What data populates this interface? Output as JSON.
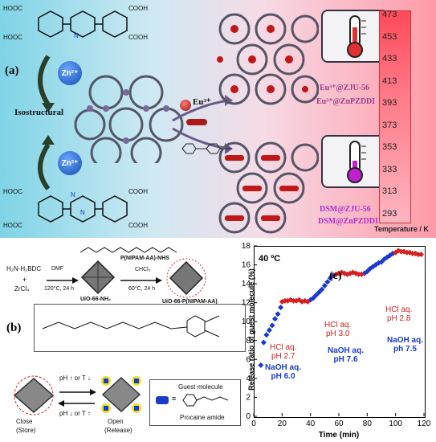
{
  "panel_a": {
    "label": "(a)",
    "zn_label": "Zn²⁺",
    "isostructural": "Isostructural",
    "eu_label": "Eu³⁺",
    "sensor_top_1": "Eu³⁺@ZJU-56",
    "sensor_top_2": "Eu³⁺@ZnPZDDI",
    "sensor_bottom_1": "DSM@ZJU-56",
    "sensor_bottom_2": "DSM@ZnPZDDI",
    "temp_axis_label": "Temperature / K",
    "temp_ticks": [
      "473",
      "453",
      "433",
      "413",
      "393",
      "373",
      "353",
      "333",
      "313",
      "293"
    ],
    "ligand_top_labels": [
      "HOOC",
      "COOH",
      "HOOC",
      "COOH",
      "N"
    ],
    "ligand_bottom_labels": [
      "HOOC",
      "COOH",
      "HOOC",
      "COOH",
      "N",
      "N"
    ]
  },
  "panel_b": {
    "label": "(b)",
    "reagent_1": "H₂N-H₂BDC",
    "plus": "+",
    "reagent_2": "ZrCl₄",
    "step1_top": "DMF",
    "step1_bottom": "120°C, 24 h",
    "mof1": "UiO-66-NH₂",
    "nhs_label": "P(NIPAM-AA)-NHS",
    "step2_top": "CHCl₃",
    "step2_bottom": "60°C, 24 h",
    "mof2": "UiO-66-P(NIPAM-AA)",
    "arrow_top": "pH ↑ or T ↓",
    "arrow_bottom": "pH ↓ or T ↑",
    "close_label": "Close",
    "close_sub": "(Store)",
    "open_label": "Open",
    "open_sub": "(Release)",
    "legend_guest": "Guest molecule",
    "legend_equiv": "≡",
    "legend_drug": "Procaine amide"
  },
  "panel_c": {
    "label": "(c)",
    "temperature": "40 ºC",
    "annotations": [
      {
        "l1": "HCl aq.",
        "l2": "pH 2.7",
        "color": "#d42020"
      },
      {
        "l1": "NaOH aq.",
        "l2": "pH 6.0",
        "color": "#1a3acc"
      },
      {
        "l1": "HCl aq.",
        "l2": "pH 3.0",
        "color": "#d42020"
      },
      {
        "l1": "NaOH aq.",
        "l2": "pH 7.6",
        "color": "#1a3acc"
      },
      {
        "l1": "HCl aq.",
        "l2": "pH 2.8",
        "color": "#d42020"
      },
      {
        "l1": "NaOH aq.",
        "l2": "ph 7.5",
        "color": "#1a3acc"
      }
    ]
  },
  "chart_data": {
    "type": "scatter",
    "title": "",
    "xlabel": "Time (min)",
    "ylabel": "Release ratio of guest molecule (%)",
    "xlim": [
      0,
      120
    ],
    "ylim": [
      0,
      18
    ],
    "xticks": [
      0,
      20,
      40,
      60,
      80,
      100,
      120
    ],
    "yticks": [
      0,
      2,
      4,
      6,
      8,
      10,
      12,
      14,
      16,
      18
    ],
    "series": [
      {
        "color": "#1a3acc",
        "x": [
          5,
          7,
          9,
          11,
          13,
          15,
          17,
          19,
          40,
          42,
          44,
          46,
          48,
          50,
          52,
          54,
          56,
          78,
          80,
          82,
          84,
          86,
          88,
          90,
          92,
          94,
          96,
          98
        ],
        "y": [
          5.4,
          7.8,
          8.6,
          9.1,
          9.6,
          10.3,
          10.8,
          11.5,
          12.3,
          12.5,
          12.8,
          13.1,
          13.4,
          13.8,
          14.2,
          14.6,
          14.9,
          15.1,
          15.3,
          15.6,
          15.8,
          16.0,
          16.2,
          16.3,
          16.6,
          16.8,
          17.0,
          17.2
        ]
      },
      {
        "color": "#d42020",
        "x": [
          20,
          22,
          24,
          26,
          28,
          30,
          32,
          34,
          36,
          38,
          58,
          60,
          62,
          64,
          66,
          68,
          70,
          72,
          74,
          76,
          100,
          102,
          104,
          106,
          108,
          110,
          112,
          114,
          116,
          118
        ],
        "y": [
          12.1,
          12.2,
          12.2,
          12.3,
          12.2,
          12.2,
          12.3,
          12.1,
          12.2,
          12.1,
          15.0,
          15.1,
          15.2,
          15.1,
          15.0,
          15.1,
          15.2,
          15.1,
          15.0,
          15.0,
          17.3,
          17.5,
          17.4,
          17.4,
          17.3,
          17.3,
          17.2,
          17.2,
          17.1,
          17.1
        ]
      }
    ]
  }
}
